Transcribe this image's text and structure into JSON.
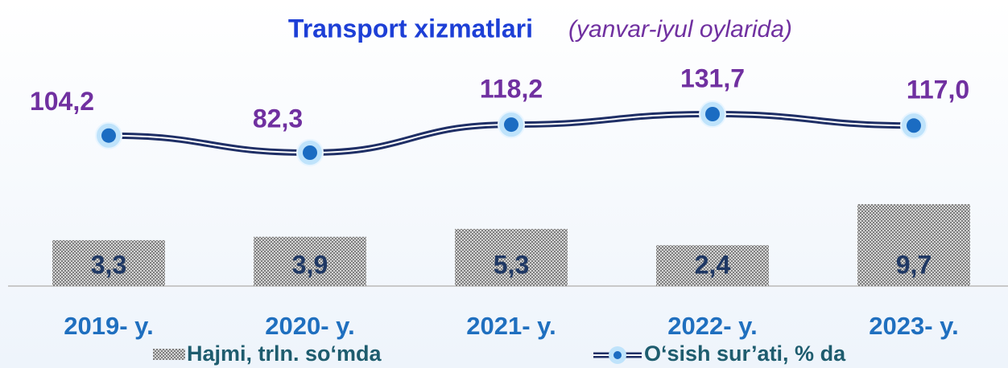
{
  "chart_data": {
    "type": "bar",
    "title": "Transport  xizmatlari",
    "subtitle": "(yanvar-iyul oylarida)",
    "categories": [
      "2019- y.",
      "2020- y.",
      "2021- y.",
      "2022- y.",
      "2023- y."
    ],
    "series": [
      {
        "name": "Hajmi, trln. so‘mda",
        "type": "bar",
        "color": "#8c8c8c",
        "values": [
          3.3,
          3.9,
          5.3,
          2.4,
          9.7
        ],
        "value_labels": [
          "3,3",
          "3,9",
          "5,3",
          "2,4",
          "9,7"
        ]
      },
      {
        "name": "O‘sish sur’ati, % da",
        "type": "line",
        "color": "#1f2f66",
        "values": [
          104.2,
          82.3,
          118.2,
          131.7,
          117.0
        ],
        "value_labels": [
          "104,2",
          "82,3",
          "118,2",
          "131,7",
          "117,0"
        ]
      }
    ]
  }
}
